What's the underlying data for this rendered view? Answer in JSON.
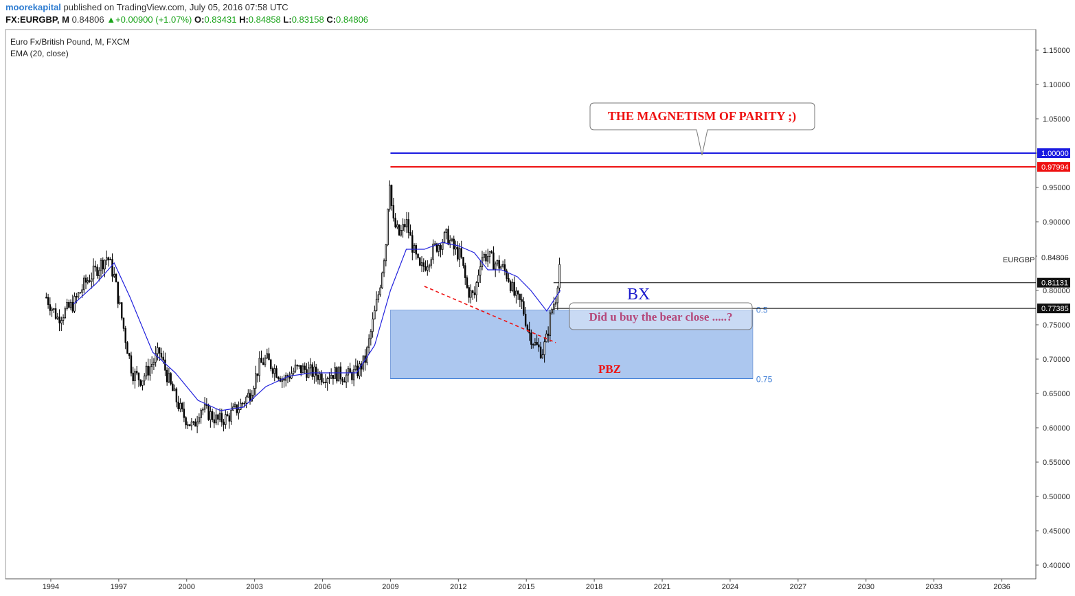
{
  "header": {
    "author": "moorekapital",
    "published": " published on TradingView.com, July 05, 2016 07:58 UTC"
  },
  "ohlc": {
    "symbol": "FX:EURGBP, M",
    "last": "0.84806",
    "change": "+0.00900 (+1.07%)",
    "open_label": "O:",
    "open": "0.83431",
    "high_label": "H:",
    "high": "0.84858",
    "low_label": "L:",
    "low": "0.83158",
    "close_label": "C:",
    "close": "0.84806"
  },
  "legend": {
    "title": "Euro Fx/British Pound, M, FXCM",
    "indicator": "EMA (20, close)"
  },
  "colors": {
    "candle": "#000000",
    "ema": "#2222dd",
    "parity_line": "#1a1ae0",
    "high_line": "#ee1111",
    "fib_zone": "#a8c4ee",
    "fib_text": "#3a7bd5",
    "up_arrow": "#1aa31a"
  },
  "annotations": {
    "magnetism": "THE MAGNETISM OF PARITY ;)",
    "bear_close": "Did u buy the bear close .....?",
    "bx": "BX",
    "pbz": "PBZ",
    "symbol_tag": "EURGBP",
    "fib_05": "0.5",
    "fib_075": "0.75"
  },
  "price_tags": {
    "parity": "1.00000",
    "high": "0.97994",
    "last": "0.84806",
    "level_bx": "0.81131",
    "level_fib": "0.77385"
  },
  "chart_data": {
    "type": "line",
    "title": "Euro Fx/British Pound, M, FXCM",
    "series": [
      {
        "name": "",
        "x": [
          1993.8,
          1994.3,
          1995.0,
          1995.5,
          1996.0,
          1996.5,
          1996.8,
          1997.3,
          1997.6,
          1998.0,
          1998.4,
          1998.8,
          1999.3,
          1999.8,
          2000.3,
          2000.6,
          2001.0,
          2001.4,
          2001.8,
          2002.3,
          2002.8,
          2003.2,
          2003.5,
          2003.9,
          2004.3,
          2004.8,
          2005.2,
          2005.6,
          2006.0,
          2006.5,
          2007.0,
          2007.5,
          2007.9,
          2008.2,
          2008.5,
          2008.8,
          2008.95,
          2009.1,
          2009.4,
          2009.7,
          2010.0,
          2010.3,
          2010.6,
          2010.9,
          2011.2,
          2011.5,
          2011.8,
          2012.1,
          2012.4,
          2012.7,
          2013.0,
          2013.3,
          2013.6,
          2013.9,
          2014.2,
          2014.5,
          2014.8,
          2015.1,
          2015.4,
          2015.7,
          2015.9,
          2016.1,
          2016.3,
          2016.5
        ],
        "values": [
          0.79,
          0.76,
          0.78,
          0.81,
          0.83,
          0.85,
          0.82,
          0.73,
          0.68,
          0.67,
          0.69,
          0.71,
          0.66,
          0.62,
          0.6,
          0.63,
          0.62,
          0.61,
          0.615,
          0.63,
          0.65,
          0.69,
          0.7,
          0.685,
          0.67,
          0.685,
          0.685,
          0.68,
          0.675,
          0.68,
          0.675,
          0.68,
          0.7,
          0.75,
          0.8,
          0.87,
          0.97,
          0.9,
          0.88,
          0.9,
          0.86,
          0.83,
          0.84,
          0.86,
          0.87,
          0.88,
          0.86,
          0.85,
          0.8,
          0.79,
          0.85,
          0.85,
          0.84,
          0.835,
          0.82,
          0.79,
          0.78,
          0.74,
          0.72,
          0.71,
          0.73,
          0.77,
          0.79,
          0.848
        ]
      },
      {
        "name": "EMA (20, close)",
        "x": [
          1995.0,
          1996.0,
          1996.8,
          1997.5,
          1998.5,
          1999.5,
          2000.5,
          2001.5,
          2002.5,
          2003.5,
          2004.5,
          2005.5,
          2006.5,
          2007.5,
          2008.3,
          2009.0,
          2009.7,
          2010.5,
          2011.3,
          2012.0,
          2012.7,
          2013.3,
          2013.9,
          2014.6,
          2015.2,
          2015.9,
          2016.5
        ],
        "values": [
          0.78,
          0.81,
          0.84,
          0.79,
          0.71,
          0.68,
          0.64,
          0.625,
          0.63,
          0.66,
          0.675,
          0.68,
          0.68,
          0.68,
          0.72,
          0.8,
          0.86,
          0.86,
          0.87,
          0.865,
          0.855,
          0.83,
          0.83,
          0.82,
          0.8,
          0.77,
          0.8
        ]
      }
    ],
    "xlabel": "",
    "ylabel": "",
    "xlim": [
      1992.0,
      2037.5
    ],
    "ylim": [
      0.38,
      1.18
    ],
    "x_ticks": [
      "1994",
      "1997",
      "2000",
      "2003",
      "2006",
      "2009",
      "2012",
      "2015",
      "2018",
      "2021",
      "2024",
      "2027",
      "2030",
      "2033",
      "2036"
    ],
    "y_ticks": [
      "0.40000",
      "0.45000",
      "0.50000",
      "0.55000",
      "0.60000",
      "0.65000",
      "0.70000",
      "0.75000",
      "0.80000",
      "0.85000",
      "0.90000",
      "0.95000",
      "1.00000",
      "1.05000",
      "1.10000",
      "1.15000"
    ],
    "horizontal_levels": [
      {
        "label": "1.00000",
        "value": 1.0
      },
      {
        "label": "0.97994",
        "value": 0.97994
      },
      {
        "label": "0.81131",
        "value": 0.81131
      },
      {
        "label": "0.77385",
        "value": 0.77385
      }
    ],
    "fib_zone": {
      "x_from": 2009.0,
      "x_to": 2025.0,
      "top": 0.7715,
      "bottom": 0.6715,
      "levels": [
        "0.5",
        "0.75"
      ]
    },
    "trendline": {
      "x": [
        2010.5,
        2016.3
      ],
      "y": [
        0.806,
        0.724
      ]
    },
    "grid": false,
    "legend": "top-left"
  }
}
